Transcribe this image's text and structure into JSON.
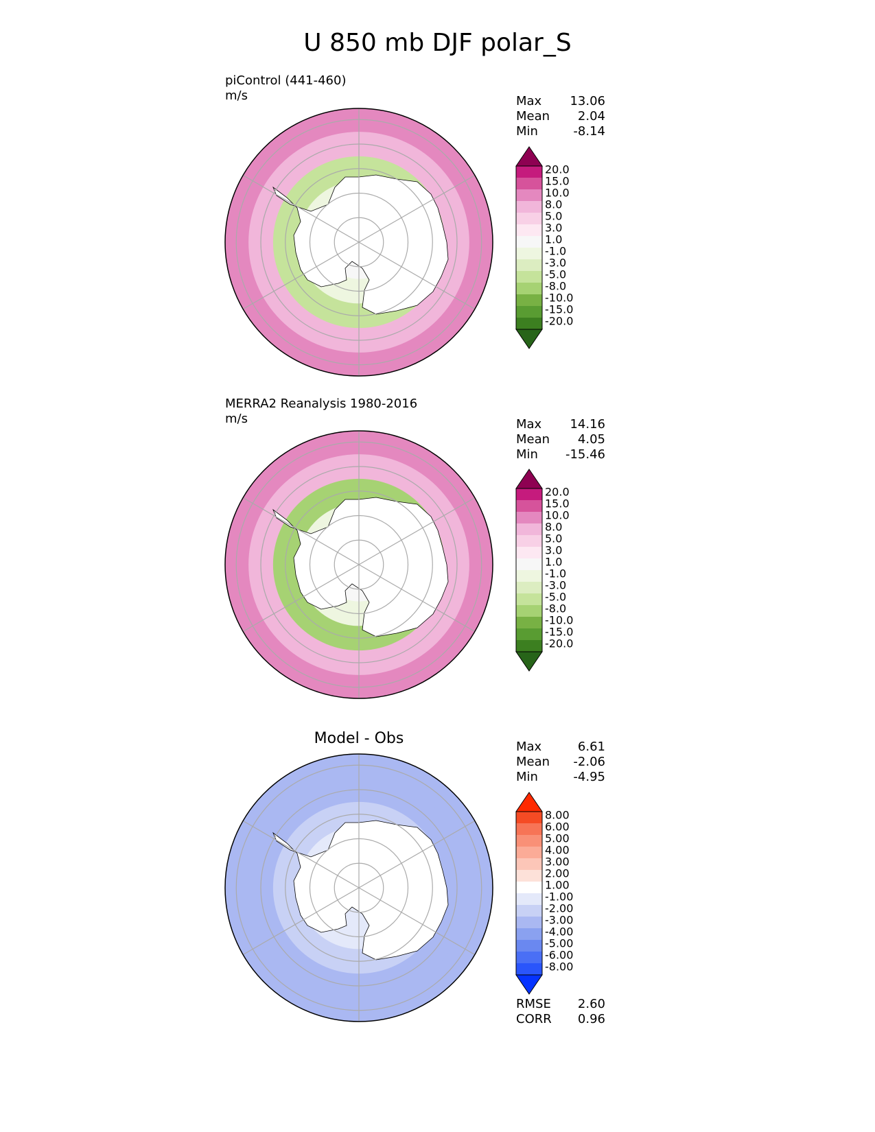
{
  "title": "U 850 mb DJF polar_S",
  "panels": [
    {
      "id": "test",
      "title": "",
      "subtitle": "piControl (441-460)",
      "units": "m/s",
      "stats": [
        {
          "label": "Max",
          "value": "13.06"
        },
        {
          "label": "Mean",
          "value": "2.04"
        },
        {
          "label": "Min",
          "value": "-8.14"
        }
      ]
    },
    {
      "id": "ref",
      "title": "",
      "subtitle": "MERRA2 Reanalysis 1980-2016",
      "units": "m/s",
      "stats": [
        {
          "label": "Max",
          "value": "14.16"
        },
        {
          "label": "Mean",
          "value": "4.05"
        },
        {
          "label": "Min",
          "value": "-15.46"
        }
      ]
    },
    {
      "id": "diff",
      "title": "Model - Obs",
      "subtitle": "",
      "units": "",
      "stats": [
        {
          "label": "Max",
          "value": "6.61"
        },
        {
          "label": "Mean",
          "value": "-2.06"
        },
        {
          "label": "Min",
          "value": "-4.95"
        }
      ],
      "metrics": [
        {
          "label": "RMSE",
          "value": "2.60"
        },
        {
          "label": "CORR",
          "value": "0.96"
        }
      ]
    }
  ],
  "chart_data": [
    {
      "type": "heatmap",
      "projection": "south-polar-stereographic",
      "panel": "piControl (441-460)",
      "units": "m/s",
      "colorbar": {
        "levels": [
          "-20.0",
          "-15.0",
          "-10.0",
          "-8.0",
          "-5.0",
          "-3.0",
          "-1.0",
          "1.0",
          "3.0",
          "5.0",
          "8.0",
          "10.0",
          "15.0",
          "20.0"
        ],
        "colors": [
          "#276419",
          "#3c7f20",
          "#599c32",
          "#78b144",
          "#a6d273",
          "#c5e39b",
          "#dcedc1",
          "#eef6e0",
          "#f7f7f7",
          "#fde8f2",
          "#f8d0e6",
          "#f1b6da",
          "#e488bf",
          "#d6539b",
          "#c51b7d",
          "#8e0152"
        ],
        "extend": "both"
      },
      "rings": {
        "lat": [
          -90,
          -80,
          -70,
          -60,
          -50,
          -40
        ],
        "value": [
          1.0,
          2.0,
          -1.0,
          -4.0,
          8.0,
          10.0
        ]
      }
    },
    {
      "type": "heatmap",
      "projection": "south-polar-stereographic",
      "panel": "MERRA2 Reanalysis 1980-2016",
      "units": "m/s",
      "colorbar": {
        "levels": [
          "-20.0",
          "-15.0",
          "-10.0",
          "-8.0",
          "-5.0",
          "-3.0",
          "-1.0",
          "1.0",
          "3.0",
          "5.0",
          "8.0",
          "10.0",
          "15.0",
          "20.0"
        ],
        "colors": [
          "#276419",
          "#3c7f20",
          "#599c32",
          "#78b144",
          "#a6d273",
          "#c5e39b",
          "#dcedc1",
          "#eef6e0",
          "#f7f7f7",
          "#fde8f2",
          "#f8d0e6",
          "#f1b6da",
          "#e488bf",
          "#d6539b",
          "#c51b7d",
          "#8e0152"
        ],
        "extend": "both"
      },
      "rings": {
        "lat": [
          -90,
          -80,
          -70,
          -60,
          -50,
          -40
        ],
        "value": [
          1.0,
          2.0,
          -1.0,
          -6.0,
          8.0,
          12.0
        ]
      }
    },
    {
      "type": "heatmap",
      "projection": "south-polar-stereographic",
      "panel": "Model - Obs",
      "units": "",
      "colorbar": {
        "levels": [
          "-8.00",
          "-6.00",
          "-5.00",
          "-4.00",
          "-3.00",
          "-2.00",
          "-1.00",
          "1.00",
          "2.00",
          "3.00",
          "4.00",
          "5.00",
          "6.00",
          "8.00"
        ],
        "colors": [
          "#0533ff",
          "#2a55fb",
          "#4a6ff5",
          "#6a88f0",
          "#8aa1f0",
          "#aab8f2",
          "#c8d1f5",
          "#e4e9fa",
          "#ffffff",
          "#fde1d9",
          "#fcc6b8",
          "#fbab97",
          "#f99077",
          "#f77456",
          "#f54b24",
          "#ff2a00"
        ],
        "extend": "both"
      },
      "rings": {
        "lat": [
          -90,
          -80,
          -70,
          -60,
          -50,
          -40
        ],
        "value": [
          0.0,
          0.0,
          0.5,
          -1.5,
          -2.5,
          -3.0
        ]
      }
    }
  ]
}
